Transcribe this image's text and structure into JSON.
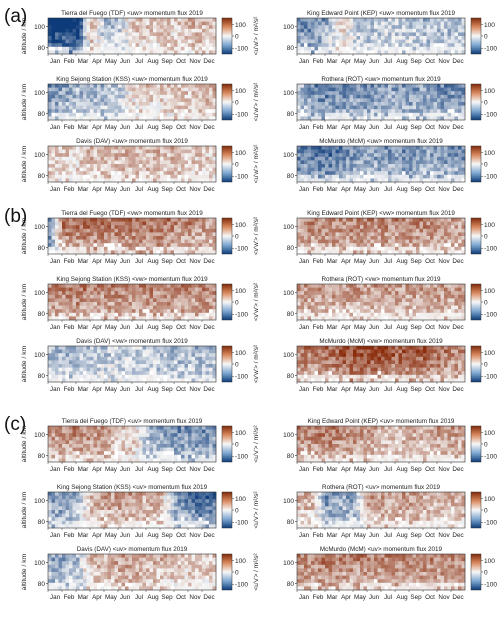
{
  "figure": {
    "months": [
      "Jan",
      "Feb",
      "Mar",
      "Apr",
      "May",
      "Jun",
      "Jul",
      "Aug",
      "Sep",
      "Oct",
      "Nov",
      "Dec"
    ],
    "altitude_ticks": [
      80,
      100
    ],
    "ylabel": "altitude / km",
    "colorbar_ticks": [
      "100",
      "0",
      "-100"
    ],
    "colormap": {
      "positive": "#8b2d0d",
      "zero": "#f7f7f7",
      "negative": "#0d3b7a"
    },
    "stations": [
      "Tierra del Fuego (TDF)",
      "King Edward Point (KEP)",
      "King Sejong Station (KSS)",
      "Rothera (ROT)",
      "Davis (DAV)",
      "McMurdo (McM)"
    ]
  },
  "chart_data": [
    {
      "label": "(a)",
      "type": "heatmap",
      "component": "<uw>",
      "colorbar_label": "<u'w'> / m²/s²",
      "zlim": [
        -100,
        100
      ],
      "xlabel": "",
      "ylabel": "altitude / km",
      "panels": [
        {
          "title": "Tierra del Fuego (TDF) <uw> momentum flux 2019",
          "sign_by_month": [
            -1,
            -1,
            -1,
            0.3,
            -0.3,
            -0.2,
            0.2,
            0.2,
            0.2,
            0.2,
            0.3,
            0.3
          ]
        },
        {
          "title": "King Edward Point (KEP) <uw> momentum flux 2019",
          "sign_by_month": [
            -0.5,
            -0.6,
            -0.4,
            0.2,
            -0.2,
            -0.3,
            -0.2,
            -0.2,
            -0.2,
            -0.3,
            -0.3,
            -0.3
          ]
        },
        {
          "title": "King Sejong Station (KSS) <uw> momentum flux 2019",
          "sign_by_month": [
            -0.5,
            -0.4,
            -0.3,
            -0.3,
            -0.3,
            -0.2,
            0.1,
            0.2,
            0.2,
            0.2,
            0.2,
            0.3
          ]
        },
        {
          "title": "Rothera (ROT) <uw> momentum flux 2019",
          "sign_by_month": [
            -0.2,
            -0.5,
            -0.6,
            -0.6,
            -0.5,
            -0.5,
            -0.4,
            -0.4,
            -0.5,
            -0.4,
            -0.5,
            -0.5
          ]
        },
        {
          "title": "Davis (DAV) <uw> momentum flux 2019",
          "sign_by_month": [
            0.2,
            0.2,
            0.2,
            0.3,
            0.3,
            0.3,
            0.3,
            0.3,
            0.3,
            0.3,
            0.2,
            0.2
          ]
        },
        {
          "title": "McMurdo (McM) <uw> momentum flux 2019",
          "sign_by_month": [
            -0.6,
            -0.6,
            -0.7,
            -0.6,
            -0.5,
            -0.4,
            -0.5,
            -0.5,
            -0.5,
            -0.4,
            -0.5,
            -0.5
          ]
        }
      ]
    },
    {
      "label": "(b)",
      "type": "heatmap",
      "component": "<vw>",
      "colorbar_label": "<v'w'> / m²/s²",
      "zlim": [
        -100,
        100
      ],
      "xlabel": "",
      "ylabel": "altitude / km",
      "panels": [
        {
          "title": "Tierra del Fuego (TDF) <vw> momentum flux 2019",
          "sign_by_month": [
            -0.6,
            0.6,
            0.6,
            0.6,
            0.6,
            0.6,
            0.6,
            0.6,
            0.6,
            0.5,
            0.5,
            0.4
          ]
        },
        {
          "title": "King Edward Point (KEP) <vw> momentum flux 2019",
          "sign_by_month": [
            0.4,
            0.5,
            0.5,
            0.5,
            0.5,
            0.5,
            0.5,
            0.5,
            0.5,
            0.5,
            0.5,
            0.4
          ]
        },
        {
          "title": "King Sejong Station (KSS) <vw> momentum flux 2019",
          "sign_by_month": [
            0.5,
            0.5,
            0.6,
            0.5,
            0.5,
            0.5,
            0.5,
            0.5,
            0.5,
            0.5,
            0.5,
            0.5
          ]
        },
        {
          "title": "Rothera (ROT) <vw> momentum flux 2019",
          "sign_by_month": [
            0.4,
            0.4,
            0.4,
            0.4,
            0.4,
            0.4,
            0.4,
            0.4,
            0.4,
            0.4,
            0.4,
            0.4
          ]
        },
        {
          "title": "Davis (DAV) <vw> momentum flux 2019",
          "sign_by_month": [
            -0.3,
            -0.3,
            -0.3,
            -0.3,
            -0.2,
            -0.2,
            -0.2,
            -0.2,
            -0.3,
            -0.3,
            -0.3,
            -0.3
          ]
        },
        {
          "title": "McMurdo (McM) <vw> momentum flux 2019",
          "sign_by_month": [
            0.5,
            0.6,
            0.6,
            0.7,
            0.8,
            0.8,
            0.8,
            0.7,
            0.7,
            0.7,
            0.6,
            0.5
          ]
        }
      ]
    },
    {
      "label": "(c)",
      "type": "heatmap",
      "component": "<uv>",
      "colorbar_label": "<u'v'> / m²/s²",
      "zlim": [
        -100,
        100
      ],
      "xlabel": "",
      "ylabel": "altitude / km",
      "panels": [
        {
          "title": "Tierra del Fuego (TDF) <uv> momentum flux 2019",
          "sign_by_month": [
            0.4,
            0.5,
            0.5,
            0.5,
            0.4,
            0.2,
            0.2,
            -0.3,
            -0.4,
            -0.5,
            -0.5,
            -0.5
          ]
        },
        {
          "title": "King Edward Point (KEP) <uv> momentum flux 2019",
          "sign_by_month": [
            0.5,
            0.5,
            0.6,
            0.5,
            0.5,
            0.4,
            0.3,
            0.3,
            0.3,
            0.3,
            0.4,
            0.4
          ]
        },
        {
          "title": "King Sejong Station (KSS) <uv> momentum flux 2019",
          "sign_by_month": [
            -0.4,
            -0.5,
            -0.3,
            0.3,
            0.4,
            0.4,
            0.4,
            0.3,
            0.3,
            -0.4,
            -0.6,
            -0.7
          ]
        },
        {
          "title": "Rothera (ROT) <uv> momentum flux 2019",
          "sign_by_month": [
            0.3,
            0.3,
            -0.5,
            -0.4,
            -0.4,
            0.4,
            0.4,
            0.4,
            0.4,
            0.3,
            0.3,
            0.3
          ]
        },
        {
          "title": "Davis (DAV) <uv> momentum flux 2019",
          "sign_by_month": [
            -0.4,
            -0.4,
            -0.3,
            0.3,
            0.3,
            0.4,
            0.4,
            0.3,
            0.3,
            0.2,
            0.2,
            0.2
          ]
        },
        {
          "title": "McMurdo (McM) <uv> momentum flux 2019",
          "sign_by_month": [
            0.5,
            0.5,
            0.6,
            0.5,
            0.5,
            0.5,
            0.5,
            0.5,
            0.5,
            0.5,
            0.5,
            0.5
          ]
        }
      ]
    }
  ]
}
